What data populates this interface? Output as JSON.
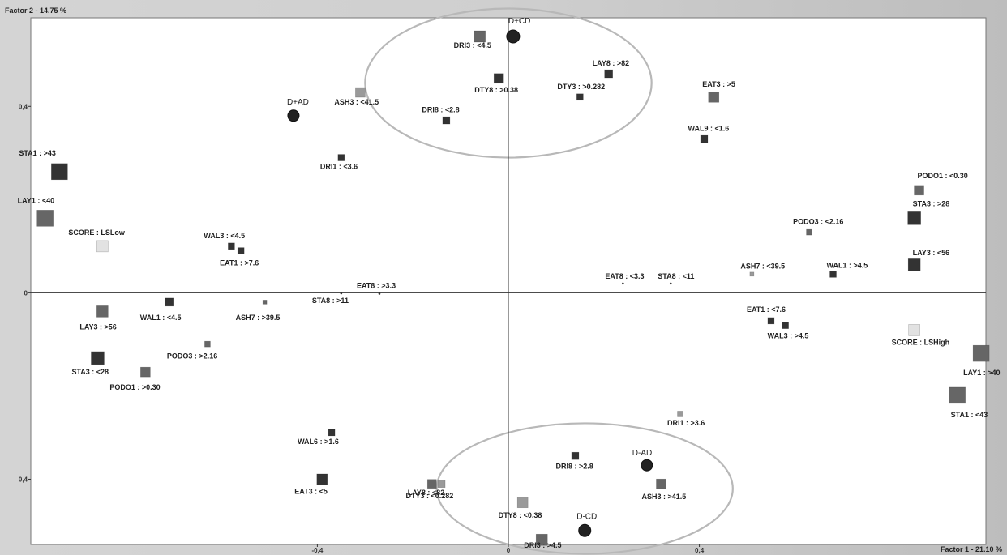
{
  "chart_data": {
    "type": "scatter",
    "title": "",
    "xlabel": "Factor 1 - 21.10 %",
    "ylabel": "Factor 2 - 14.75 %",
    "xlim": [
      -1.0,
      1.0
    ],
    "ylim": [
      -0.54,
      0.59
    ],
    "x_ticks": [
      {
        "v": -0.4,
        "label": "-0,4"
      },
      {
        "v": 0,
        "label": "0"
      },
      {
        "v": 0.4,
        "label": "0,4"
      }
    ],
    "y_ticks": [
      {
        "v": 0.4,
        "label": "0,4"
      },
      {
        "v": 0,
        "label": "0"
      },
      {
        "v": -0.4,
        "label": "-0,4"
      }
    ],
    "grid": false,
    "legend": "none",
    "colors": {
      "dark": "#333333",
      "mid": "#666666",
      "light": "#9a9a9a",
      "pale": "#e2e2e2",
      "ellipse": "#b8b8b8",
      "circle": "#222222"
    },
    "points": [
      {
        "label": "D+CD",
        "x": 0.01,
        "y": 0.55,
        "shape": "circle",
        "size": 16,
        "color": "circle",
        "lx": -6,
        "ly": -16
      },
      {
        "label": "D+AD",
        "x": -0.45,
        "y": 0.38,
        "shape": "circle",
        "size": 14,
        "color": "circle",
        "lx": -8,
        "ly": -14
      },
      {
        "label": "D-AD",
        "x": 0.29,
        "y": -0.37,
        "shape": "circle",
        "size": 14,
        "color": "circle",
        "lx": -18,
        "ly": -12
      },
      {
        "label": "D-CD",
        "x": 0.16,
        "y": -0.51,
        "shape": "circle",
        "size": 15,
        "color": "circle",
        "lx": -10,
        "ly": -14
      },
      {
        "label": "DRI3 : <4.5",
        "x": -0.06,
        "y": 0.55,
        "shape": "square",
        "size": 14,
        "color": "mid",
        "lx": -32,
        "ly": 14
      },
      {
        "label": "DTY8 : >0.38",
        "x": -0.02,
        "y": 0.46,
        "shape": "square",
        "size": 12,
        "color": "dark",
        "lx": -30,
        "ly": 17
      },
      {
        "label": "LAY8 : >82",
        "x": 0.21,
        "y": 0.47,
        "shape": "square",
        "size": 10,
        "color": "dark",
        "lx": -20,
        "ly": -10
      },
      {
        "label": "DTY3 : >0.282",
        "x": 0.15,
        "y": 0.42,
        "shape": "square",
        "size": 8,
        "color": "dark",
        "lx": -28,
        "ly": -10
      },
      {
        "label": "ASH3 : <41.5",
        "x": -0.31,
        "y": 0.43,
        "shape": "square",
        "size": 12,
        "color": "light",
        "lx": -32,
        "ly": 15
      },
      {
        "label": "DRI8 : <2.8",
        "x": -0.13,
        "y": 0.37,
        "shape": "square",
        "size": 9,
        "color": "dark",
        "lx": -30,
        "ly": -10
      },
      {
        "label": "EAT3 : >5",
        "x": 0.43,
        "y": 0.42,
        "shape": "square",
        "size": 13,
        "color": "mid",
        "lx": -14,
        "ly": -13
      },
      {
        "label": "WAL9 : <1.6",
        "x": 0.41,
        "y": 0.33,
        "shape": "square",
        "size": 9,
        "color": "dark",
        "lx": -20,
        "ly": -10
      },
      {
        "label": "DRI1 : <3.6",
        "x": -0.35,
        "y": 0.29,
        "shape": "square",
        "size": 8,
        "color": "dark",
        "lx": -26,
        "ly": 14
      },
      {
        "label": "STA1 : >43",
        "x": -0.94,
        "y": 0.26,
        "shape": "square",
        "size": 20,
        "color": "dark",
        "lx": -50,
        "ly": -20
      },
      {
        "label": "LAY1 : <40",
        "x": -0.97,
        "y": 0.16,
        "shape": "square",
        "size": 20,
        "color": "mid",
        "lx": -34,
        "ly": -19
      },
      {
        "label": "SCORE : LSLow",
        "x": -0.85,
        "y": 0.1,
        "shape": "square",
        "size": 14,
        "color": "pale",
        "lx": -42,
        "ly": -14
      },
      {
        "label": "WAL3 : <4.5",
        "x": -0.58,
        "y": 0.1,
        "shape": "square",
        "size": 8,
        "color": "dark",
        "lx": -34,
        "ly": -10
      },
      {
        "label": "EAT1 : >7.6",
        "x": -0.56,
        "y": 0.09,
        "shape": "square",
        "size": 8,
        "color": "dark",
        "lx": -26,
        "ly": 18
      },
      {
        "label": "EAT8 : >3.3",
        "x": -0.27,
        "y": -0.002,
        "shape": "dot",
        "size": 2,
        "color": "dark",
        "lx": -28,
        "ly": -7
      },
      {
        "label": "STA8 : >11",
        "x": -0.35,
        "y": -0.001,
        "shape": "dot",
        "size": 2,
        "color": "dark",
        "lx": -36,
        "ly": 12
      },
      {
        "label": "ASH7 : >39.5",
        "x": -0.51,
        "y": -0.02,
        "shape": "square",
        "size": 5,
        "color": "mid",
        "lx": -36,
        "ly": 22
      },
      {
        "label": "WAL1 : <4.5",
        "x": -0.71,
        "y": -0.02,
        "shape": "square",
        "size": 10,
        "color": "dark",
        "lx": -36,
        "ly": 22
      },
      {
        "label": "LAY3 : >56",
        "x": -0.85,
        "y": -0.04,
        "shape": "square",
        "size": 14,
        "color": "mid",
        "lx": -28,
        "ly": 22
      },
      {
        "label": "PODO3 : >2.16",
        "x": -0.63,
        "y": -0.11,
        "shape": "square",
        "size": 7,
        "color": "mid",
        "lx": -50,
        "ly": 18
      },
      {
        "label": "STA3 : <28",
        "x": -0.86,
        "y": -0.14,
        "shape": "square",
        "size": 16,
        "color": "dark",
        "lx": -32,
        "ly": 20
      },
      {
        "label": "PODO1 : >0.30",
        "x": -0.76,
        "y": -0.17,
        "shape": "square",
        "size": 12,
        "color": "mid",
        "lx": -44,
        "ly": 22
      },
      {
        "label": "PODO1 : <0.30",
        "x": 0.86,
        "y": 0.22,
        "shape": "square",
        "size": 12,
        "color": "mid",
        "lx": -2,
        "ly": -15
      },
      {
        "label": "STA3 : >28",
        "x": 0.85,
        "y": 0.16,
        "shape": "square",
        "size": 16,
        "color": "dark",
        "lx": -2,
        "ly": -15
      },
      {
        "label": "PODO3 : <2.16",
        "x": 0.63,
        "y": 0.13,
        "shape": "square",
        "size": 7,
        "color": "mid",
        "lx": -20,
        "ly": -10
      },
      {
        "label": "LAY3 : <56",
        "x": 0.85,
        "y": 0.06,
        "shape": "square",
        "size": 15,
        "color": "dark",
        "lx": -2,
        "ly": -12
      },
      {
        "label": "WAL1 : >4.5",
        "x": 0.68,
        "y": 0.04,
        "shape": "square",
        "size": 8,
        "color": "dark",
        "lx": -8,
        "ly": -8
      },
      {
        "label": "ASH7 : <39.5",
        "x": 0.51,
        "y": 0.04,
        "shape": "square",
        "size": 5,
        "color": "light",
        "lx": -14,
        "ly": -7
      },
      {
        "label": "EAT8 : <3.3",
        "x": 0.24,
        "y": 0.02,
        "shape": "dot",
        "size": 2,
        "color": "dark",
        "lx": -22,
        "ly": -6
      },
      {
        "label": "STA8 : <11",
        "x": 0.34,
        "y": 0.02,
        "shape": "dot",
        "size": 2,
        "color": "dark",
        "lx": -16,
        "ly": -6
      },
      {
        "label": "EAT1 : <7.6",
        "x": 0.55,
        "y": -0.06,
        "shape": "square",
        "size": 8,
        "color": "dark",
        "lx": -30,
        "ly": -11
      },
      {
        "label": "WAL3 : >4.5",
        "x": 0.58,
        "y": -0.07,
        "shape": "square",
        "size": 8,
        "color": "dark",
        "lx": -22,
        "ly": 16
      },
      {
        "label": "SCORE : LSHigh",
        "x": 0.85,
        "y": -0.08,
        "shape": "square",
        "size": 14,
        "color": "pale",
        "lx": -28,
        "ly": 18
      },
      {
        "label": "LAY1 : >40",
        "x": 0.99,
        "y": -0.13,
        "shape": "square",
        "size": 20,
        "color": "mid",
        "lx": -22,
        "ly": 27
      },
      {
        "label": "STA1 : <43",
        "x": 0.94,
        "y": -0.22,
        "shape": "square",
        "size": 20,
        "color": "mid",
        "lx": -8,
        "ly": 27
      },
      {
        "label": "DRI1 : >3.6",
        "x": 0.36,
        "y": -0.26,
        "shape": "square",
        "size": 7,
        "color": "light",
        "lx": -16,
        "ly": 14
      },
      {
        "label": "WAL6 : >1.6",
        "x": -0.37,
        "y": -0.3,
        "shape": "square",
        "size": 8,
        "color": "dark",
        "lx": -42,
        "ly": 14
      },
      {
        "label": "DRI8 : >2.8",
        "x": 0.14,
        "y": -0.35,
        "shape": "square",
        "size": 9,
        "color": "dark",
        "lx": -24,
        "ly": 16
      },
      {
        "label": "EAT3 : <5",
        "x": -0.39,
        "y": -0.4,
        "shape": "square",
        "size": 13,
        "color": "dark",
        "lx": -34,
        "ly": 18
      },
      {
        "label": "LAY8 : <82",
        "x": -0.16,
        "y": -0.41,
        "shape": "square",
        "size": 11,
        "color": "mid",
        "lx": -30,
        "ly": 14
      },
      {
        "label": "DTY3 : <0.282",
        "x": -0.14,
        "y": -0.41,
        "shape": "square",
        "size": 9,
        "color": "light",
        "lx": -44,
        "ly": 18
      },
      {
        "label": "ASH3 : >41.5",
        "x": 0.32,
        "y": -0.41,
        "shape": "square",
        "size": 12,
        "color": "mid",
        "lx": -24,
        "ly": 19
      },
      {
        "label": "DTY8 : <0.38",
        "x": 0.03,
        "y": -0.45,
        "shape": "square",
        "size": 13,
        "color": "light",
        "lx": -30,
        "ly": 19
      },
      {
        "label": "DRI3 : >4.5",
        "x": 0.07,
        "y": -0.53,
        "shape": "square",
        "size": 14,
        "color": "mid",
        "lx": -22,
        "ly": 10
      }
    ],
    "ellipses": [
      {
        "cx": 0.0,
        "cy": 0.45,
        "rx": 0.3,
        "ry": 0.16
      },
      {
        "cx": 0.16,
        "cy": -0.42,
        "rx": 0.31,
        "ry": 0.14
      }
    ]
  }
}
